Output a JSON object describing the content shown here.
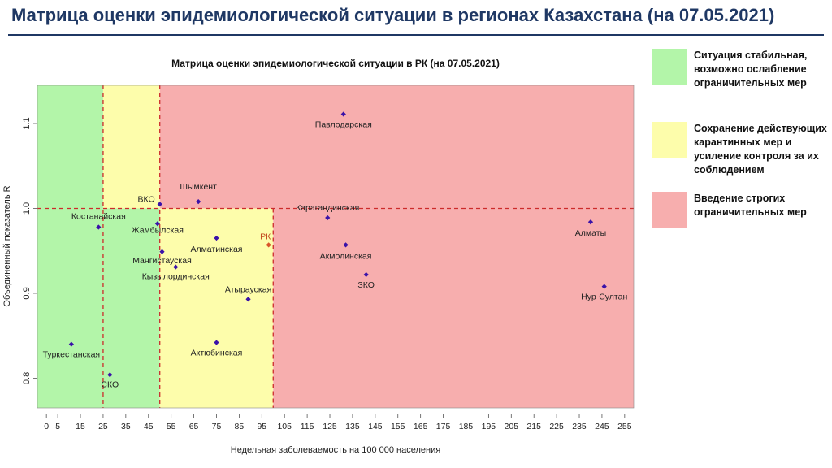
{
  "header": {
    "title": "Матрица оценки эпидемиологической ситуации в регионах Казахстана (на 07.05.2021)"
  },
  "legend": [
    {
      "label": "Ситуация стабильная, возможно ослабление ограничительных мер",
      "color": "#b3f5a9"
    },
    {
      "label": "Сохранение действующих карантинных мер и усиление контроля за их соблюдением",
      "color": "#fdfdab"
    },
    {
      "label": "Введение строгих ограничительных мер",
      "color": "#f7aeae"
    }
  ],
  "chart_data": {
    "type": "scatter",
    "title": "Матрица оценки эпидемиологической ситуации в РК (на 07.05.2021)",
    "xlabel": "Недельная заболеваемость на 100 000 населения",
    "ylabel": "Объединенный показатель R",
    "xlim": [
      -4,
      259
    ],
    "ylim": [
      0.765,
      1.145
    ],
    "x_ticks": [
      0,
      5,
      15,
      25,
      35,
      45,
      55,
      65,
      75,
      85,
      95,
      105,
      115,
      125,
      135,
      145,
      155,
      165,
      175,
      185,
      195,
      205,
      215,
      225,
      235,
      245,
      255
    ],
    "y_ticks": [
      0.8,
      0.9,
      1.0,
      1.1
    ],
    "y_tick_labels": [
      "0.8",
      "0.9",
      "1.0",
      "1.1"
    ],
    "zones": [
      {
        "color": "#b3f5a9",
        "x": [
          -4,
          50
        ],
        "y": [
          0.765,
          1.0
        ]
      },
      {
        "color": "#b3f5a9",
        "x": [
          -4,
          25
        ],
        "y": [
          1.0,
          1.145
        ]
      },
      {
        "color": "#fdfdab",
        "x": [
          25,
          50
        ],
        "y": [
          1.0,
          1.145
        ]
      },
      {
        "color": "#fdfdab",
        "x": [
          50,
          100
        ],
        "y": [
          0.765,
          1.0
        ]
      },
      {
        "color": "#f7aeae",
        "x": [
          50,
          259
        ],
        "y": [
          1.0,
          1.145
        ]
      },
      {
        "color": "#f7aeae",
        "x": [
          100,
          259
        ],
        "y": [
          0.765,
          1.0
        ]
      }
    ],
    "threshold_lines": {
      "x": [
        25,
        50,
        100
      ],
      "y": [
        1.0
      ],
      "color": "#cc2b2b"
    },
    "points": [
      {
        "name": "Павлодарская",
        "x": 131,
        "y": 1.111,
        "color": "#3a12a8"
      },
      {
        "name": "ВКО",
        "x": 50,
        "y": 1.005,
        "color": "#3a12a8"
      },
      {
        "name": "Шымкент",
        "x": 67,
        "y": 1.008,
        "color": "#3a12a8"
      },
      {
        "name": "Карагандинская",
        "x": 124,
        "y": 0.989,
        "color": "#3a12a8"
      },
      {
        "name": "Костанайская",
        "x": 23,
        "y": 0.978,
        "color": "#3a12a8"
      },
      {
        "name": "Жамбылская",
        "x": 49,
        "y": 0.982,
        "color": "#3a12a8"
      },
      {
        "name": "Алматинская",
        "x": 75,
        "y": 0.965,
        "color": "#3a12a8"
      },
      {
        "name": "РК",
        "x": 98,
        "y": 0.957,
        "color": "#d9552a"
      },
      {
        "name": "Акмолинская",
        "x": 132,
        "y": 0.957,
        "color": "#3a12a8"
      },
      {
        "name": "Алматы",
        "x": 240,
        "y": 0.984,
        "color": "#3a12a8"
      },
      {
        "name": "Мангистауская",
        "x": 51,
        "y": 0.949,
        "color": "#3a12a8"
      },
      {
        "name": "Кызылординская",
        "x": 57,
        "y": 0.931,
        "color": "#3a12a8"
      },
      {
        "name": "ЗКО",
        "x": 141,
        "y": 0.922,
        "color": "#3a12a8"
      },
      {
        "name": "Атырауская",
        "x": 89,
        "y": 0.893,
        "color": "#3a12a8"
      },
      {
        "name": "Нур-Султан",
        "x": 246,
        "y": 0.908,
        "color": "#3a12a8"
      },
      {
        "name": "Туркестанская",
        "x": 11,
        "y": 0.84,
        "color": "#3a12a8"
      },
      {
        "name": "Актюбинская",
        "x": 75,
        "y": 0.842,
        "color": "#3a12a8"
      },
      {
        "name": "СКО",
        "x": 28,
        "y": 0.804,
        "color": "#3a12a8"
      }
    ]
  }
}
